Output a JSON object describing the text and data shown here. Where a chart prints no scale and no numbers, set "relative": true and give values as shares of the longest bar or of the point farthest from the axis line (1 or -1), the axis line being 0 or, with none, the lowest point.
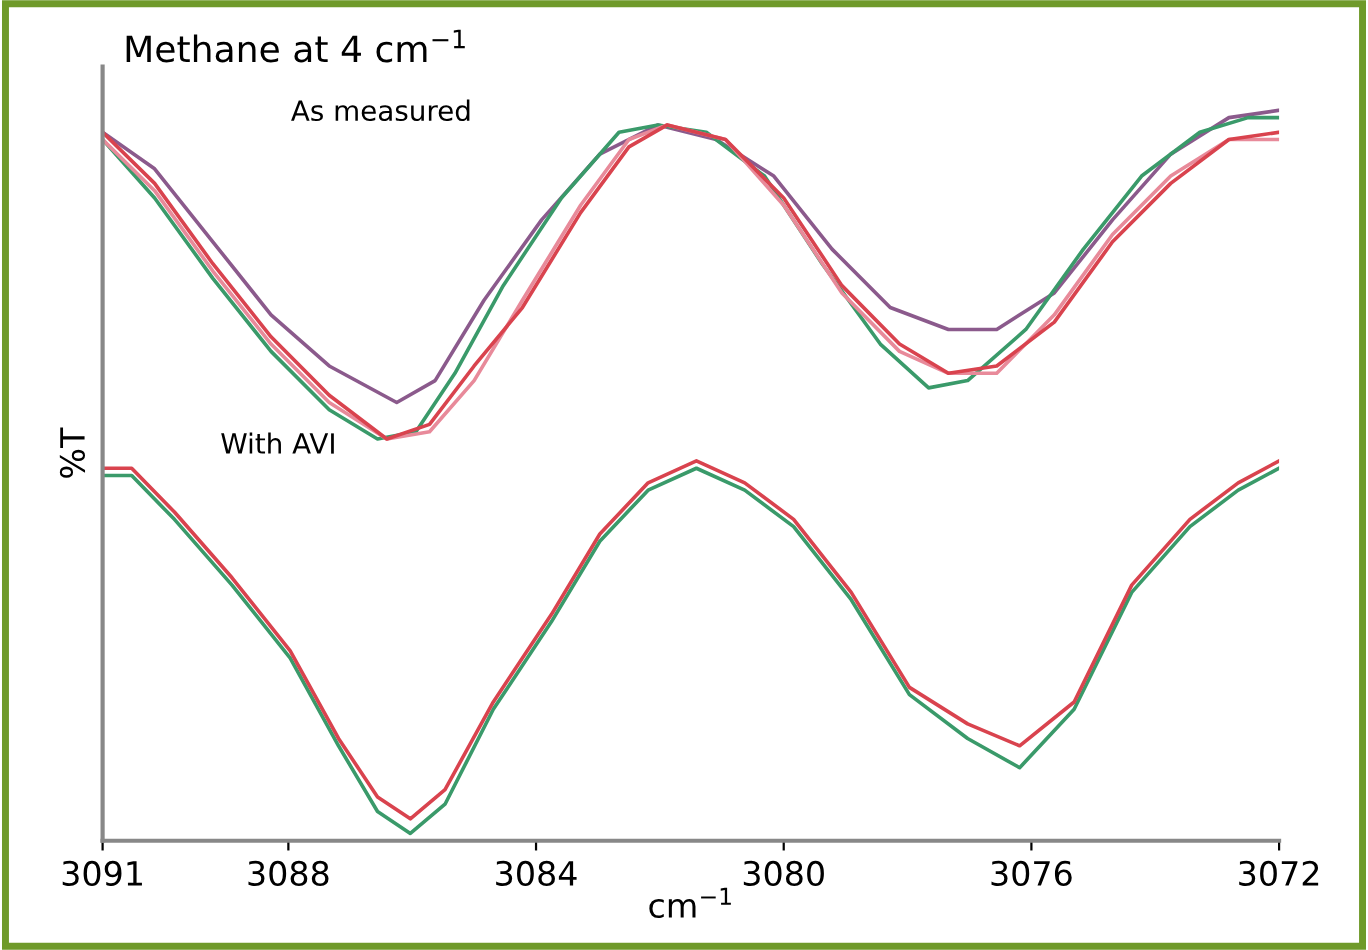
{
  "chart_data": {
    "type": "line",
    "relative": true,
    "title": "Methane at 4 cm$^{−1}$",
    "xlabel": "cm$^{−1}$",
    "ylabel": "%T",
    "annotations": [
      "As measured",
      "With AVI"
    ],
    "xlim": [
      3091,
      3072
    ],
    "xticks": [
      3091,
      3088,
      3084,
      3080,
      3076,
      3072
    ],
    "grid": false,
    "legend": false,
    "marker": "none",
    "line_style": "solid",
    "series": [
      {
        "color": "#8b5a8c",
        "x": [
          3091,
          3090.16,
          3089.22,
          3088.28,
          3087.34,
          3086.25,
          3085.63,
          3084.84,
          3083.91,
          3082.97,
          3082.03,
          3081.09,
          3080.16,
          3079.22,
          3078.28,
          3077.34,
          3076.56,
          3075.63,
          3074.69,
          3073.75,
          3072.81,
          3072
        ],
        "values": [
          0.97,
          0.92,
          0.82,
          0.72,
          0.65,
          0.6,
          0.63,
          0.74,
          0.85,
          0.94,
          0.98,
          0.96,
          0.91,
          0.81,
          0.73,
          0.7,
          0.7,
          0.75,
          0.85,
          0.94,
          0.99,
          1.0
        ]
      },
      {
        "color": "#3a9a6a",
        "x": [
          3091,
          3090.16,
          3089.22,
          3088.28,
          3087.34,
          3086.56,
          3085.94,
          3085.31,
          3084.53,
          3083.59,
          3082.66,
          3082.03,
          3081.25,
          3080.31,
          3079.38,
          3078.44,
          3077.66,
          3077.03,
          3076.09,
          3075.16,
          3074.22,
          3073.28,
          3072.5,
          3072
        ],
        "values": [
          0.96,
          0.88,
          0.77,
          0.67,
          0.59,
          0.55,
          0.56,
          0.64,
          0.76,
          0.88,
          0.97,
          0.98,
          0.97,
          0.91,
          0.79,
          0.68,
          0.62,
          0.63,
          0.7,
          0.81,
          0.91,
          0.97,
          0.99,
          0.99
        ]
      },
      {
        "color": "#e88a9a",
        "x": [
          3091,
          3090.16,
          3089.22,
          3088.28,
          3087.34,
          3086.41,
          3085.72,
          3085.0,
          3084.22,
          3083.28,
          3082.5,
          3081.88,
          3080.94,
          3080.0,
          3079.06,
          3078.13,
          3077.34,
          3076.56,
          3075.63,
          3074.69,
          3073.75,
          3072.81,
          3072
        ],
        "values": [
          0.96,
          0.89,
          0.78,
          0.68,
          0.6,
          0.55,
          0.56,
          0.63,
          0.74,
          0.87,
          0.96,
          0.98,
          0.96,
          0.87,
          0.75,
          0.67,
          0.64,
          0.64,
          0.72,
          0.83,
          0.91,
          0.96,
          0.96
        ]
      },
      {
        "color": "#d9434e",
        "x": [
          3091,
          3090.16,
          3089.22,
          3088.28,
          3087.34,
          3086.41,
          3085.72,
          3085.0,
          3084.22,
          3083.28,
          3082.5,
          3081.88,
          3080.94,
          3080.0,
          3079.06,
          3078.13,
          3077.34,
          3076.56,
          3075.63,
          3074.69,
          3073.75,
          3072.81,
          3072
        ],
        "values": [
          0.97,
          0.9,
          0.79,
          0.69,
          0.61,
          0.55,
          0.57,
          0.65,
          0.73,
          0.86,
          0.95,
          0.98,
          0.96,
          0.88,
          0.76,
          0.68,
          0.64,
          0.65,
          0.71,
          0.82,
          0.9,
          0.96,
          0.97
        ]
      },
      {
        "color": "#3a9a6a",
        "x": [
          3091,
          3090.53,
          3089.84,
          3088.91,
          3087.97,
          3087.19,
          3086.56,
          3086.03,
          3085.47,
          3084.69,
          3083.75,
          3082.97,
          3082.19,
          3081.41,
          3080.63,
          3079.84,
          3078.91,
          3077.97,
          3077.03,
          3076.19,
          3075.31,
          3074.38,
          3073.44,
          3072.66,
          3072
        ],
        "values": [
          0.5,
          0.5,
          0.44,
          0.35,
          0.25,
          0.13,
          0.04,
          0.01,
          0.05,
          0.18,
          0.3,
          0.41,
          0.48,
          0.51,
          0.48,
          0.43,
          0.33,
          0.2,
          0.14,
          0.1,
          0.18,
          0.34,
          0.43,
          0.48,
          0.51
        ]
      },
      {
        "color": "#d9434e",
        "x": [
          3091,
          3090.53,
          3089.84,
          3088.91,
          3087.97,
          3087.19,
          3086.56,
          3086.03,
          3085.47,
          3084.69,
          3083.75,
          3082.97,
          3082.19,
          3081.41,
          3080.63,
          3079.84,
          3078.91,
          3077.97,
          3077.03,
          3076.19,
          3075.31,
          3074.38,
          3073.44,
          3072.66,
          3072
        ],
        "values": [
          0.51,
          0.51,
          0.45,
          0.36,
          0.26,
          0.14,
          0.06,
          0.03,
          0.07,
          0.19,
          0.31,
          0.42,
          0.49,
          0.52,
          0.49,
          0.44,
          0.34,
          0.21,
          0.16,
          0.13,
          0.19,
          0.35,
          0.44,
          0.49,
          0.52
        ]
      }
    ]
  }
}
